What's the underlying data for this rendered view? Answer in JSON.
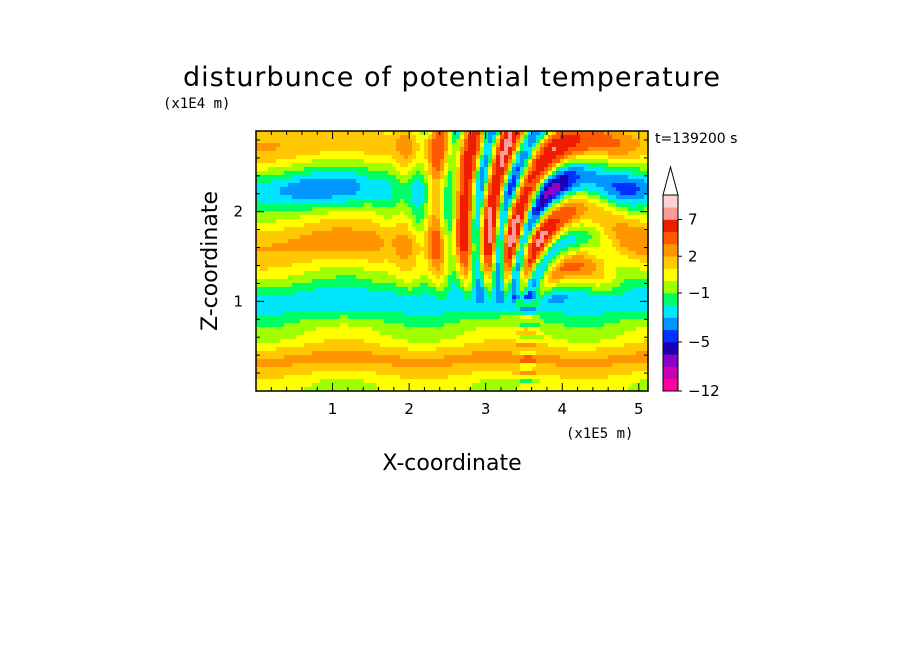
{
  "chart_data": {
    "type": "heatmap",
    "title": "disturbunce of potential temperature",
    "xlabel": "X-coordinate",
    "ylabel": "Z-coordinate",
    "x_scale_label": "(x1E5 m)",
    "y_scale_label": "(x1E4 m)",
    "time_label": "t=139200 s",
    "xlim": [
      0,
      5.12
    ],
    "ylim": [
      0,
      2.9
    ],
    "x_ticks": [
      "1",
      "2",
      "3",
      "4",
      "5"
    ],
    "x_tick_values": [
      1,
      2,
      3,
      4,
      5
    ],
    "y_ticks": [
      "1",
      "2"
    ],
    "y_tick_values": [
      1,
      2
    ],
    "colorbar": {
      "tick_labels": [
        "7",
        "2",
        "−1",
        "−5",
        "−12"
      ],
      "tick_values": [
        7,
        2,
        -1,
        -5,
        -12
      ],
      "levels": [
        -12,
        -10,
        -8,
        -6,
        -5,
        -4,
        -3,
        -2,
        -1,
        0,
        1,
        2,
        3,
        5,
        7,
        9,
        11
      ],
      "colors": [
        "#ff00a0",
        "#c800b4",
        "#8c00c8",
        "#1e00b4",
        "#0032ff",
        "#0096ff",
        "#00e6ff",
        "#00ff64",
        "#a0ff00",
        "#ffff00",
        "#ffc800",
        "#ff9600",
        "#ff5a00",
        "#f01e00",
        "#ff9a9a",
        "#ffd2d2"
      ],
      "extend_max": true
    },
    "field_description": "Layered temperature disturbance field with wave pattern radiating from x≈3.5"
  }
}
